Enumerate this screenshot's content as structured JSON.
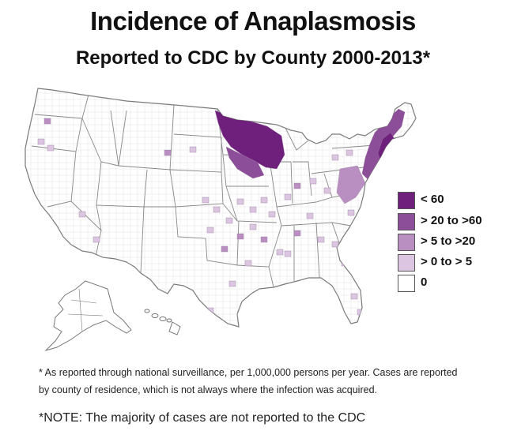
{
  "title": "Incidence of Anaplasmosis",
  "subtitle": "Reported to CDC by County 2000-2013*",
  "legend": {
    "items": [
      {
        "label": "< 60",
        "color": "#6f1f7c"
      },
      {
        "label": "> 20 to >60",
        "color": "#8d4e99"
      },
      {
        "label": "> 5 to >20",
        "color": "#b98ec1"
      },
      {
        "label": "> 0 to > 5",
        "color": "#dcc5e1"
      },
      {
        "label": "0",
        "color": "#ffffff"
      }
    ]
  },
  "map": {
    "outline_color": "#777777",
    "county_color": "#d4d4d4",
    "regions": [
      {
        "name": "Upper Midwest (Minnesota & Wisconsin)",
        "level": "< 60"
      },
      {
        "name": "Northeast (New England, New York)",
        "level": "> 20 to >60"
      },
      {
        "name": "Mid-Atlantic",
        "level": "> 5 to >20"
      },
      {
        "name": "South Central",
        "level": "> 0 to > 5"
      }
    ]
  },
  "footnote": {
    "line1": "* As reported through national surveillance, per 1,000,000 persons per year. Cases are reported",
    "line2": "by county of residence, which is not always where the infection was acquired."
  },
  "note": "*NOTE: The majority of cases are not reported to the CDC"
}
